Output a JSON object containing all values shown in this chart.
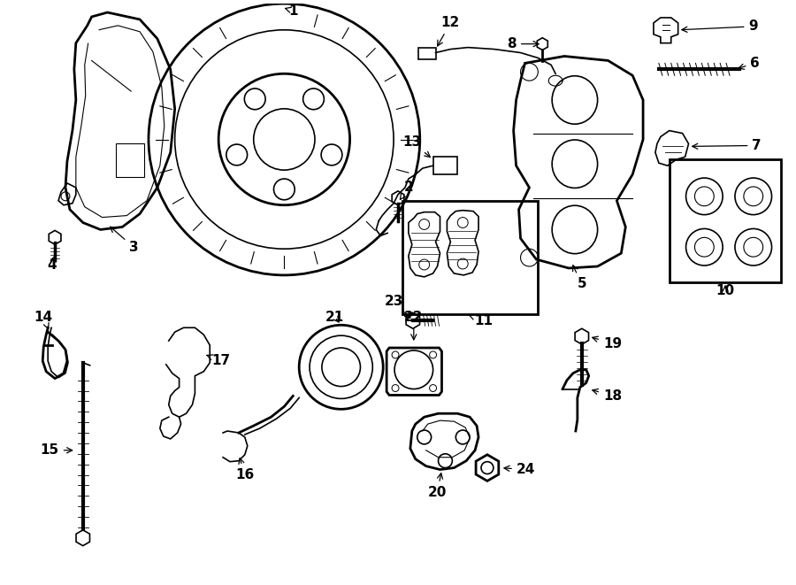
{
  "bg_color": "#ffffff",
  "line_color": "#000000",
  "label_fontsize": 11,
  "figsize": [
    9.0,
    6.61
  ],
  "dpi": 100
}
